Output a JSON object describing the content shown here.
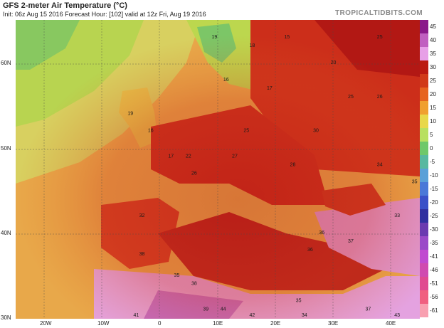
{
  "header": {
    "title": "GFS 2-meter Air Temperature (°C)",
    "subtitle": "Init: 06z Aug 15 2016   Forecast Hour: [102]   valid at 12z Fri, Aug 19 2016",
    "brand": "TROPICALTIDBITS.COM"
  },
  "axes": {
    "lat_labels": [
      "60N",
      "50N",
      "40N",
      "30N"
    ],
    "lon_labels": [
      "20W",
      "10W",
      "0",
      "10E",
      "20E",
      "30E",
      "40E"
    ]
  },
  "colorbar": {
    "labels": [
      "45",
      "40",
      "35",
      "30",
      "25",
      "20",
      "15",
      "10",
      "5",
      "0",
      "-5",
      "-10",
      "-15",
      "-20",
      "-25",
      "-30",
      "-35",
      "-41",
      "-46",
      "-51",
      "-56",
      "-61"
    ],
    "colors": [
      "#8a1a8a",
      "#c060c0",
      "#e7a0e7",
      "#bb1a10",
      "#d13a18",
      "#e6641f",
      "#f0a030",
      "#e8d84a",
      "#b8e060",
      "#6fc86a",
      "#58b8a0",
      "#5aa0d8",
      "#4a78d8",
      "#3a50c8",
      "#3030a0",
      "#6a3ab0",
      "#9a4ac8",
      "#c04ad0",
      "#d04ab0",
      "#e04a90",
      "#f06080",
      "#f8a0b0"
    ]
  },
  "map_values": [
    {
      "label": "19",
      "lon": 9.5,
      "lat": 63
    },
    {
      "label": "16",
      "lon": 11.5,
      "lat": 58
    },
    {
      "label": "15",
      "lon": 22,
      "lat": 63
    },
    {
      "label": "25",
      "lon": 38,
      "lat": 63
    },
    {
      "label": "18",
      "lon": 16,
      "lat": 62
    },
    {
      "label": "20",
      "lon": 30,
      "lat": 60
    },
    {
      "label": "17",
      "lon": 19,
      "lat": 57
    },
    {
      "label": "19",
      "lon": -5,
      "lat": 54
    },
    {
      "label": "16",
      "lon": -1.5,
      "lat": 52
    },
    {
      "label": "17",
      "lon": 2,
      "lat": 49
    },
    {
      "label": "22",
      "lon": 5,
      "lat": 49
    },
    {
      "label": "26",
      "lon": 6,
      "lat": 47
    },
    {
      "label": "27",
      "lon": 13,
      "lat": 49
    },
    {
      "label": "25",
      "lon": 15,
      "lat": 52
    },
    {
      "label": "28",
      "lon": 23,
      "lat": 48
    },
    {
      "label": "30",
      "lon": 27,
      "lat": 52
    },
    {
      "label": "25",
      "lon": 33,
      "lat": 56
    },
    {
      "label": "26",
      "lon": 38,
      "lat": 56
    },
    {
      "label": "34",
      "lon": 38,
      "lat": 48
    },
    {
      "label": "35",
      "lon": 44,
      "lat": 46
    },
    {
      "label": "33",
      "lon": 41,
      "lat": 42
    },
    {
      "label": "37",
      "lon": 33,
      "lat": 39
    },
    {
      "label": "36",
      "lon": 26,
      "lat": 38
    },
    {
      "label": "36",
      "lon": 28,
      "lat": 40
    },
    {
      "label": "32",
      "lon": -3,
      "lat": 42
    },
    {
      "label": "38",
      "lon": -3,
      "lat": 37.5
    },
    {
      "label": "35",
      "lon": 3,
      "lat": 35
    },
    {
      "label": "38",
      "lon": 6,
      "lat": 34
    },
    {
      "label": "39",
      "lon": 8,
      "lat": 31
    },
    {
      "label": "44",
      "lon": 11,
      "lat": 31
    },
    {
      "label": "35",
      "lon": 24,
      "lat": 32
    },
    {
      "label": "37",
      "lon": 36,
      "lat": 31
    },
    {
      "label": "41",
      "lon": -4,
      "lat": 30.3
    },
    {
      "label": "42",
      "lon": 16,
      "lat": 30.3
    },
    {
      "label": "34",
      "lon": 25,
      "lat": 30.3
    },
    {
      "label": "43",
      "lon": 41,
      "lat": 30.3
    }
  ]
}
